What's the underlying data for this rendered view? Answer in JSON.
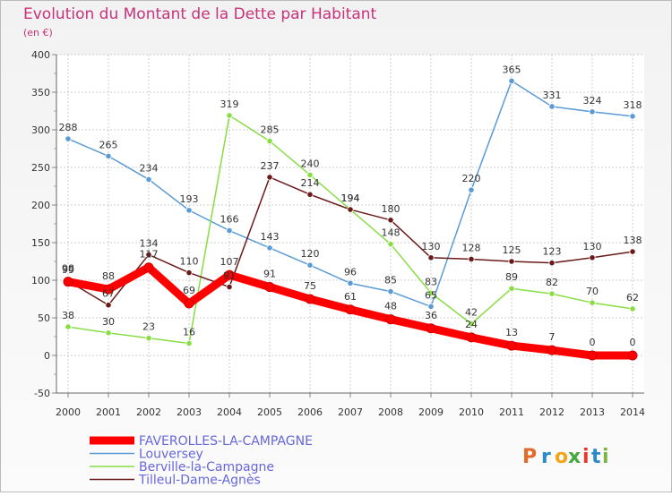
{
  "chart_data": {
    "type": "line",
    "title": "Evolution du Montant de la Dette par Habitant",
    "subtitle": "(en €)",
    "x": [
      "2000",
      "2001",
      "2002",
      "2003",
      "2004",
      "2005",
      "2006",
      "2007",
      "2008",
      "2009",
      "2010",
      "2011",
      "2012",
      "2013",
      "2014"
    ],
    "ylim": [
      -50,
      400
    ],
    "yticks": [
      -50,
      0,
      50,
      100,
      150,
      200,
      250,
      300,
      350,
      400
    ],
    "grid": true,
    "legend_position": "bottom-left",
    "series": [
      {
        "name": "FAVEROLLES-LA-CAMPAGNE",
        "color": "#ff0000",
        "thick": true,
        "values": [
          98,
          88,
          117,
          69,
          107,
          91,
          75,
          61,
          48,
          36,
          24,
          13,
          7,
          0,
          0
        ]
      },
      {
        "name": "Louversey",
        "color": "#5b9bd5",
        "thick": false,
        "values": [
          288,
          265,
          234,
          193,
          166,
          143,
          120,
          96,
          85,
          65,
          220,
          365,
          331,
          324,
          318
        ]
      },
      {
        "name": "Berville-la-Campagne",
        "color": "#88dd44",
        "thick": false,
        "values": [
          38,
          30,
          23,
          16,
          319,
          285,
          240,
          194,
          148,
          83,
          42,
          89,
          82,
          70,
          62
        ]
      },
      {
        "name": "Tilleul-Dame-Agnès",
        "color": "#6b1a1a",
        "thick": false,
        "values": [
          99,
          67,
          134,
          110,
          91,
          237,
          214,
          194,
          180,
          130,
          128,
          125,
          123,
          130,
          138
        ]
      }
    ]
  },
  "logo": {
    "text": "Proxiti",
    "letters": [
      "P",
      "r",
      "o",
      "x",
      "i",
      "t",
      "i"
    ]
  }
}
